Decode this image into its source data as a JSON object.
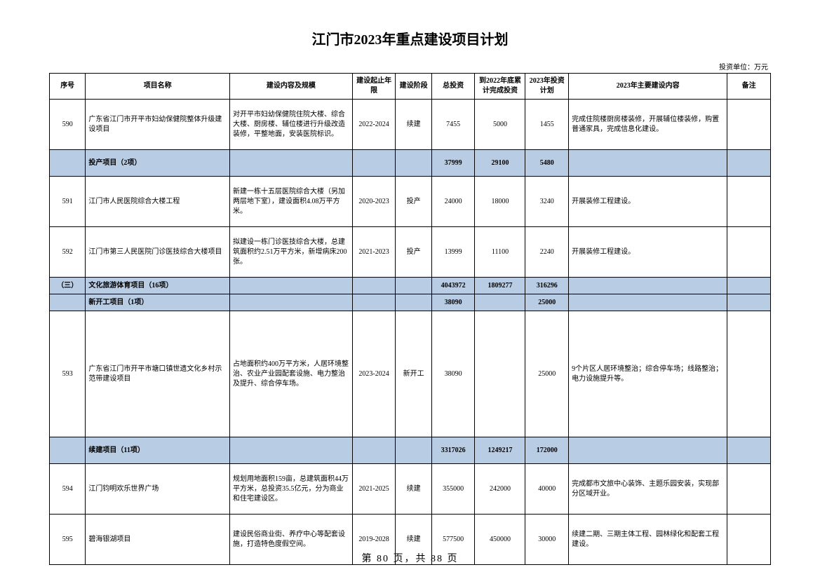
{
  "title": "江门市2023年重点建设项目计划",
  "unit": "投资单位：万元",
  "columns": [
    "序号",
    "项目名称",
    "建设内容及规模",
    "建设起止年限",
    "建设阶段",
    "总投资",
    "到2022年底累计完成投资",
    "2023年投资计划",
    "2023年主要建设内容",
    "备注"
  ],
  "rows": [
    {
      "type": "data",
      "h": "lg",
      "seq": "590",
      "name": "广东省江门市开平市妇幼保健院整体升级建设项目",
      "scope": "对开平市妇幼保健院住院大楼、综合大楼、厨房楼、辅位楼进行升级改造装修，平整地面，安装医院标识。",
      "period": "2022-2024",
      "stage": "续建",
      "total": "7455",
      "done": "5000",
      "plan": "1455",
      "task": "完成住院楼厨房楼装修，开展辅位楼装修，购置普通家具，完成信息化建设。",
      "note": ""
    },
    {
      "type": "section",
      "h": "md",
      "seq": "",
      "name": "投产项目（2项）",
      "scope": "",
      "period": "",
      "stage": "",
      "total": "37999",
      "done": "29100",
      "plan": "5480",
      "task": "",
      "note": ""
    },
    {
      "type": "data",
      "h": "lg",
      "seq": "591",
      "name": "江门市人民医院综合大楼工程",
      "scope": "新建一栋十五层医院综合大楼（另加两层地下室），建设面积4.08万平方米。",
      "period": "2020-2023",
      "stage": "投产",
      "total": "24000",
      "done": "18000",
      "plan": "3240",
      "task": "开展装修工程建设。",
      "note": ""
    },
    {
      "type": "data",
      "h": "lg",
      "seq": "592",
      "name": "江门市第三人民医院门诊医技综合大楼项目",
      "scope": "拟建设一栋门诊医技综合大楼，总建筑面积约2.51万平方米，新增病床200张。",
      "period": "2021-2023",
      "stage": "投产",
      "total": "13999",
      "done": "11100",
      "plan": "2240",
      "task": "开展装修工程建设。",
      "note": ""
    },
    {
      "type": "section",
      "h": "sm",
      "seq": "（三）",
      "name": "文化旅游体育项目（16项）",
      "scope": "",
      "period": "",
      "stage": "",
      "total": "4043972",
      "done": "1809277",
      "plan": "316296",
      "task": "",
      "note": ""
    },
    {
      "type": "section",
      "h": "sm",
      "seq": "",
      "name": "新开工项目（1项）",
      "scope": "",
      "period": "",
      "stage": "",
      "total": "38090",
      "done": "",
      "plan": "25000",
      "task": "",
      "note": ""
    },
    {
      "type": "data",
      "h": "xl",
      "seq": "593",
      "name": "广东省江门市开平市塘口镇世遗文化乡村示范带建设项目",
      "scope": "占地面积约400万平方米，人居环境整治、农业产业园配套设施、电力整治及提升、综合停车场。",
      "period": "2023-2024",
      "stage": "新开工",
      "total": "38090",
      "done": "",
      "plan": "25000",
      "task": "9个片区人居环境整治；综合停车场；线路整治；电力设施提升等。",
      "note": ""
    },
    {
      "type": "section",
      "h": "md",
      "seq": "",
      "name": "续建项目（11项）",
      "scope": "",
      "period": "",
      "stage": "",
      "total": "3317026",
      "done": "1249217",
      "plan": "172000",
      "task": "",
      "note": ""
    },
    {
      "type": "data",
      "h": "lg",
      "seq": "594",
      "name": "江门钧明欢乐世界广场",
      "scope": "规划用地面积159亩，总建筑面积44万平方米，总投资35.5亿元，分为商业和住宅建设区。",
      "period": "2021-2025",
      "stage": "续建",
      "total": "355000",
      "done": "242000",
      "plan": "40000",
      "task": "完成都市文旅中心装饰、主题乐园安装，实现部分区域开业。",
      "note": ""
    },
    {
      "type": "data",
      "h": "lg",
      "seq": "595",
      "name": "碧海银湖项目",
      "scope": "建设民俗商业街、养疗中心等配套设施，打造特色度假空间。",
      "period": "2019-2028",
      "stage": "续建",
      "total": "577500",
      "done": "450000",
      "plan": "30000",
      "task": "续建二期、三期主体工程、园林绿化和配套工程建设。",
      "note": ""
    }
  ],
  "footer": "第 80 页，共 88 页"
}
